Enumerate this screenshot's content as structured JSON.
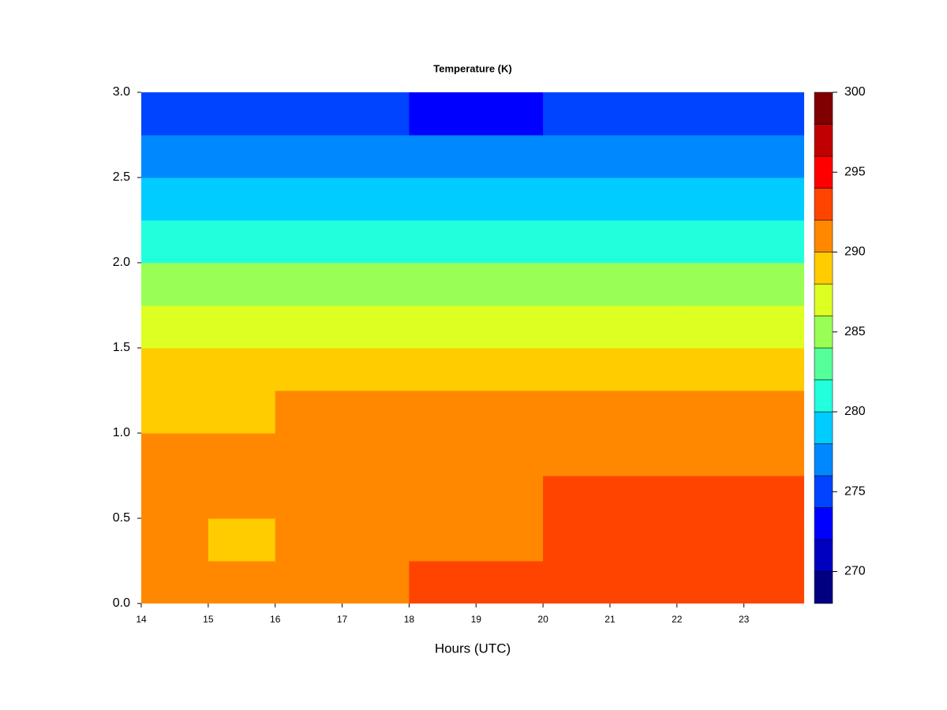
{
  "chart_data": {
    "type": "contour",
    "title": "Temperature (K)",
    "x_label": "Hours (UTC)",
    "x": [
      14.5,
      15.5,
      16.5,
      17.5,
      18.5,
      19.5,
      20.5,
      21.5,
      22.5,
      23.5
    ],
    "y": [
      0.125,
      0.375,
      0.625,
      0.875,
      1.125,
      1.375,
      1.625,
      1.875,
      2.125,
      2.375,
      2.625,
      2.875
    ],
    "z": [
      [
        290.5,
        290.2,
        291.5,
        291.5,
        292,
        292,
        292.5,
        292.5,
        292.5,
        292.5
      ],
      [
        290.5,
        289.5,
        291,
        291,
        291,
        291.5,
        292.5,
        292.5,
        292.5,
        292
      ],
      [
        291,
        290.5,
        291,
        291,
        291,
        291.5,
        292.5,
        292.5,
        292.5,
        292
      ],
      [
        290.5,
        290.5,
        290.8,
        290.8,
        290.8,
        291,
        291.5,
        291.5,
        291.5,
        291
      ],
      [
        289.5,
        289.5,
        290,
        290,
        290,
        290,
        290.2,
        290.2,
        290.2,
        290
      ],
      [
        288.5,
        288.5,
        288.5,
        288.5,
        288.5,
        288.5,
        288.5,
        288.5,
        288.5,
        288.5
      ],
      [
        286.5,
        286.5,
        286.5,
        286.5,
        286.5,
        286.5,
        286.5,
        286.5,
        286.5,
        286.5
      ],
      [
        284.5,
        284.5,
        284.5,
        284.5,
        284.5,
        284.5,
        284.5,
        284.5,
        284.5,
        284.5
      ],
      [
        281,
        281,
        281,
        281,
        281,
        281,
        281,
        281,
        281,
        281
      ],
      [
        279,
        279,
        279,
        279,
        278.5,
        279,
        279,
        279,
        279,
        279
      ],
      [
        277,
        277,
        277,
        277,
        276.5,
        276.5,
        277,
        277,
        277,
        277
      ],
      [
        274.5,
        274.5,
        274.5,
        274.5,
        273.5,
        273.5,
        274.5,
        274.5,
        274.5,
        274
      ]
    ],
    "levels": [
      268,
      270,
      272,
      274,
      276,
      278,
      280,
      282,
      284,
      286,
      288,
      290,
      292,
      294,
      296,
      298,
      300
    ],
    "colors": [
      "#000080",
      "#0000c0",
      "#0000ff",
      "#0044ff",
      "#0088ff",
      "#00ccff",
      "#22ffdd",
      "#55ff99",
      "#99ff55",
      "#ddff22",
      "#ffcc00",
      "#ff8800",
      "#ff4400",
      "#ff0000",
      "#c00000",
      "#800000"
    ],
    "zticks": [
      270,
      275,
      280,
      285,
      290,
      295,
      300
    ],
    "xlim": [
      14,
      23.9
    ],
    "ylim": [
      0,
      3
    ],
    "xticks": [
      14,
      15,
      16,
      17,
      18,
      19,
      20,
      21,
      22,
      23
    ],
    "yticks": [
      {
        "value": 0,
        "label": "0.0"
      },
      {
        "value": 0.5,
        "label": "0.5"
      },
      {
        "value": 1,
        "label": "1.0"
      },
      {
        "value": 1.5,
        "label": "1.5"
      },
      {
        "value": 2,
        "label": "2.0"
      },
      {
        "value": 2.5,
        "label": "2.5"
      },
      {
        "value": 3,
        "label": "3.0"
      }
    ]
  }
}
